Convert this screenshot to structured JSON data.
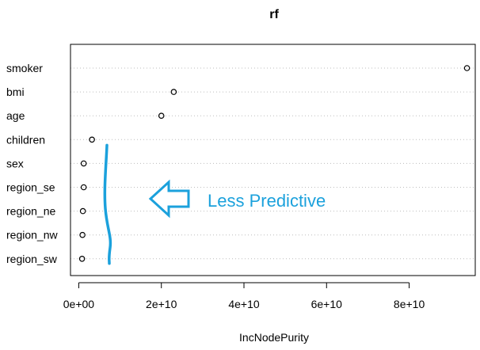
{
  "chart_data": {
    "type": "scatter",
    "title": "rf",
    "xlabel": "IncNodePurity",
    "ylabel": "",
    "xlim": [
      -2000000000.0,
      96000000000.0
    ],
    "x_ticks": [
      0,
      20000000000.0,
      40000000000.0,
      60000000000.0,
      80000000000.0
    ],
    "x_tick_labels": [
      "0e+00",
      "2e+10",
      "4e+10",
      "6e+10",
      "8e+10"
    ],
    "categories": [
      "smoker",
      "bmi",
      "age",
      "children",
      "sex",
      "region_se",
      "region_ne",
      "region_nw",
      "region_sw"
    ],
    "values": [
      94000000000.0,
      23000000000.0,
      20000000000.0,
      3200000000.0,
      1200000000.0,
      1200000000.0,
      1000000000.0,
      900000000.0,
      800000000.0
    ],
    "grid": "horizontal dotted",
    "annotation": {
      "text": "Less Predictive",
      "color": "#1ba1dc",
      "arrow": "hollow-left-arrow",
      "bracket_from_category": "sex",
      "bracket_to_category": "region_sw"
    }
  }
}
